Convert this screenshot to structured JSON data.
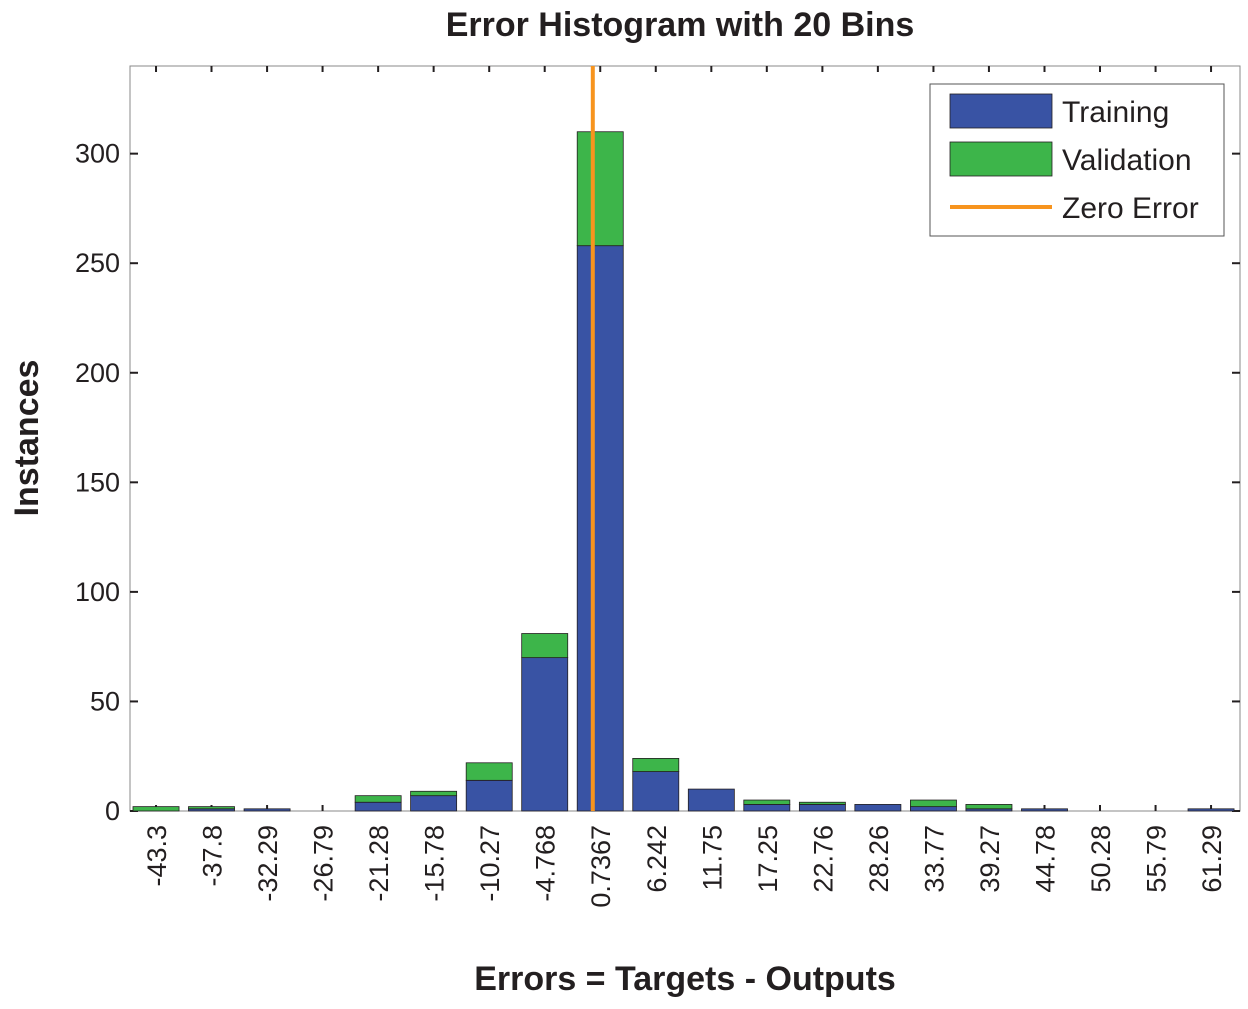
{
  "chart_data": {
    "type": "histogram",
    "title": "Error Histogram with 20 Bins",
    "xlabel": "Errors = Targets - Outputs",
    "ylabel": "Instances",
    "x": [
      -43.3,
      -37.8,
      -32.29,
      -26.79,
      -21.28,
      -15.78,
      -10.27,
      -4.768,
      0.7367,
      6.242,
      11.75,
      17.25,
      22.76,
      28.26,
      33.77,
      39.27,
      44.78,
      50.28,
      55.79,
      61.29
    ],
    "xticks": [
      -43.3,
      -37.8,
      -32.29,
      -26.79,
      -21.28,
      -15.78,
      -10.27,
      -4.768,
      0.7367,
      6.242,
      11.75,
      17.25,
      22.76,
      28.26,
      33.77,
      39.27,
      44.78,
      50.28,
      55.79,
      61.29
    ],
    "xlim": [
      -45.88,
      64.16
    ],
    "ylim": [
      0,
      340
    ],
    "yticks": [
      0,
      50,
      100,
      150,
      200,
      250,
      300
    ],
    "stacked": true,
    "series": [
      {
        "name": "Training",
        "color": "#3953a4",
        "values": [
          0,
          1,
          1,
          0,
          4,
          7,
          14,
          70,
          258,
          18,
          10,
          3,
          3,
          3,
          2,
          1,
          1,
          0,
          0,
          1
        ]
      },
      {
        "name": "Validation",
        "color": "#3db54a",
        "values": [
          2,
          1,
          0,
          0,
          3,
          2,
          8,
          11,
          52,
          6,
          0,
          2,
          1,
          0,
          3,
          2,
          0,
          0,
          0,
          0
        ]
      }
    ],
    "zero_line": {
      "name": "Zero Error",
      "color": "#f7941e",
      "x": 0
    },
    "legend": "top-right"
  }
}
